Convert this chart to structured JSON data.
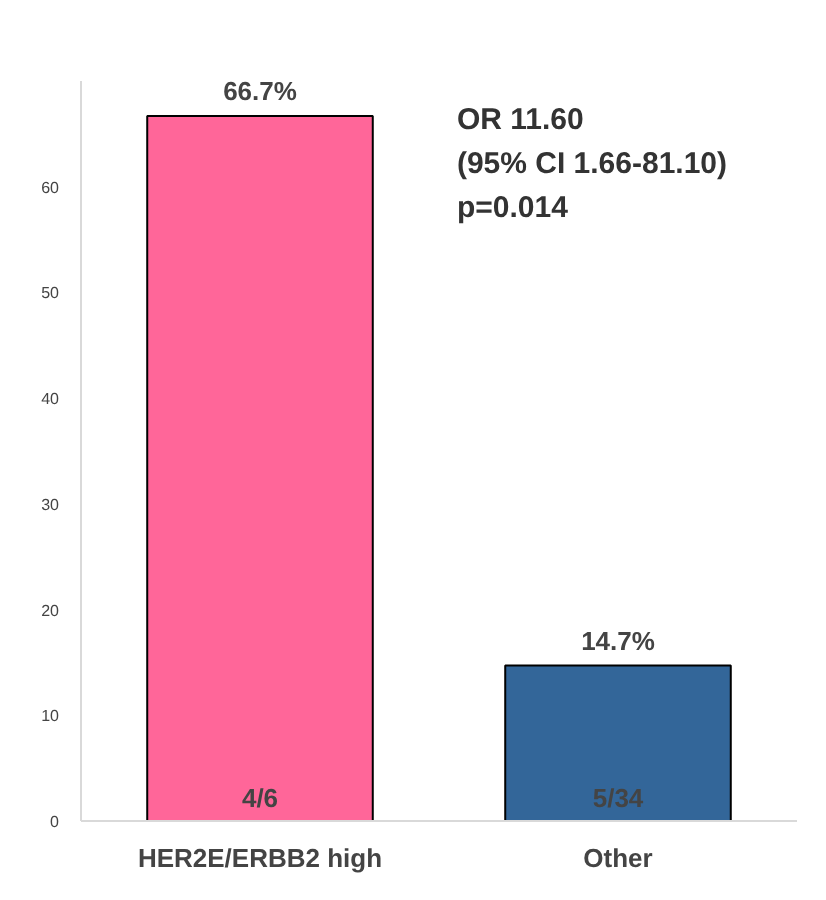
{
  "chart_data": {
    "type": "bar",
    "categories": [
      "HER2E/ERBB2 high",
      "Other"
    ],
    "values": [
      66.7,
      14.7
    ],
    "colors": [
      "#ff6699",
      "#336699"
    ],
    "value_labels": [
      "66.7%",
      "14.7%"
    ],
    "ylim": [
      0,
      70
    ],
    "yticks": [
      0,
      10,
      20,
      30,
      40,
      50,
      60
    ],
    "grid": false,
    "annotations": [
      {
        "text": "4/6",
        "x": "HER2E/ERBB2 high",
        "y": 0
      },
      {
        "text": "5/34",
        "x": "Other",
        "y": 0
      },
      "OR 11.60",
      "(95% CI 1.66-81.10)",
      "p=0.014"
    ]
  }
}
